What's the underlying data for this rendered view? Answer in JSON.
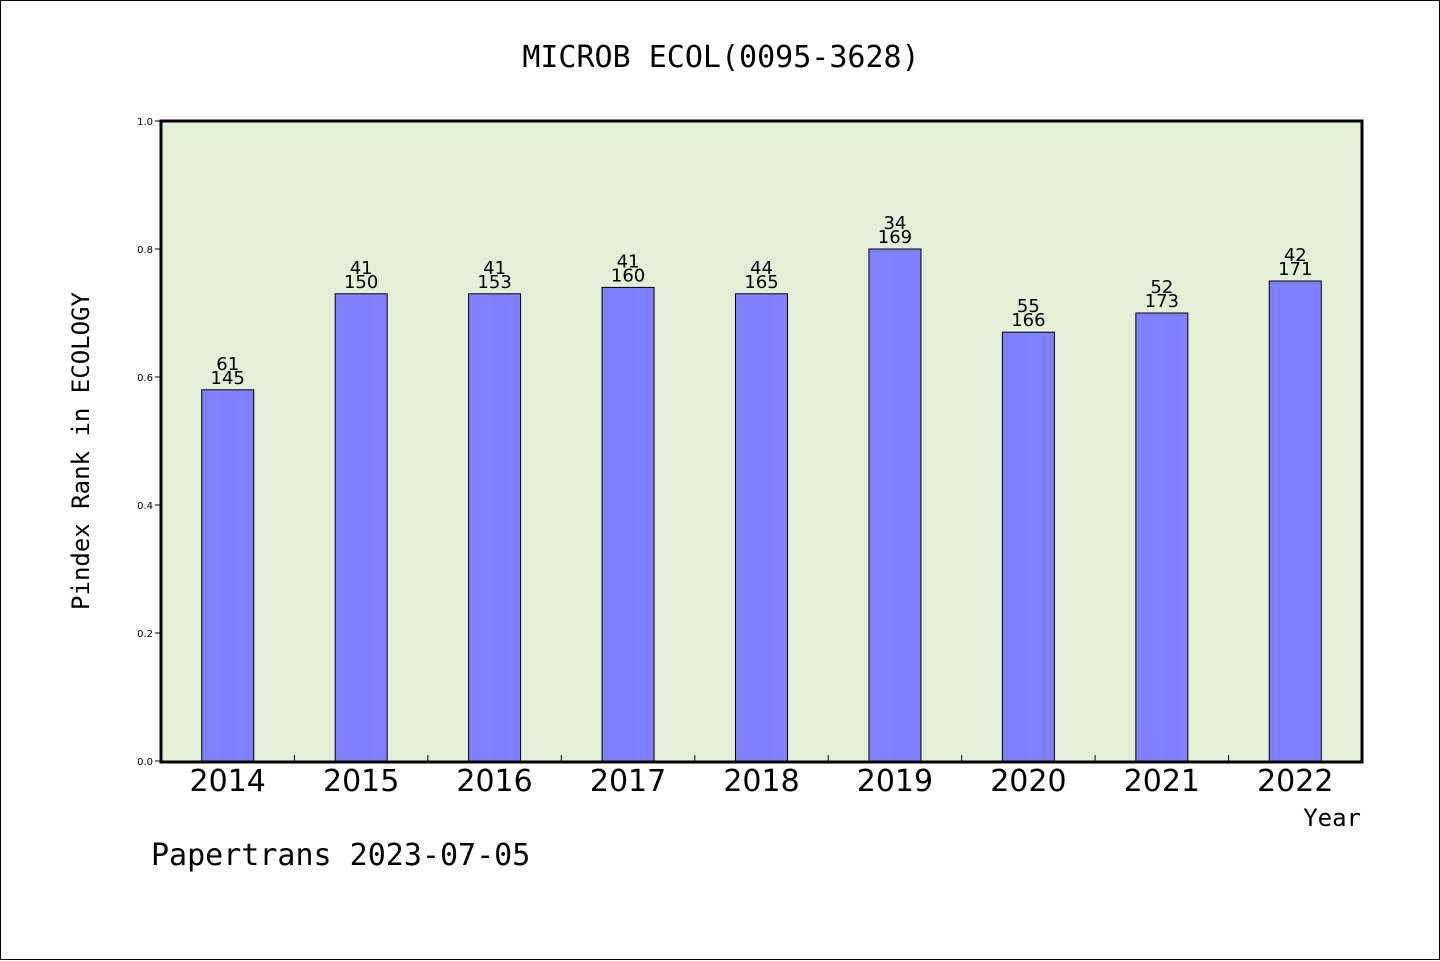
{
  "chart_data": {
    "type": "bar",
    "title": "MICROB ECOL(0095-3628)",
    "xlabel": "Year",
    "ylabel": "Pindex Rank in ECOLOGY",
    "ylim": [
      0,
      1.0
    ],
    "yticks": [
      "0.0",
      "0.2",
      "0.4",
      "0.6",
      "0.8",
      "1.0"
    ],
    "categories": [
      "2014",
      "2015",
      "2016",
      "2017",
      "2018",
      "2019",
      "2020",
      "2021",
      "2022"
    ],
    "values": [
      0.58,
      0.73,
      0.73,
      0.74,
      0.73,
      0.8,
      0.67,
      0.7,
      0.75
    ],
    "rank_labels": [
      "61",
      "41",
      "41",
      "41",
      "44",
      "34",
      "55",
      "52",
      "42"
    ],
    "total_labels": [
      "145",
      "150",
      "153",
      "160",
      "165",
      "169",
      "166",
      "173",
      "171"
    ],
    "grid": false,
    "colors": {
      "plot_background": "#e2f0d8",
      "bar_fill": "#8080ff",
      "bar_stroke": "#000000"
    }
  },
  "footer": "Papertrans 2023-07-05"
}
